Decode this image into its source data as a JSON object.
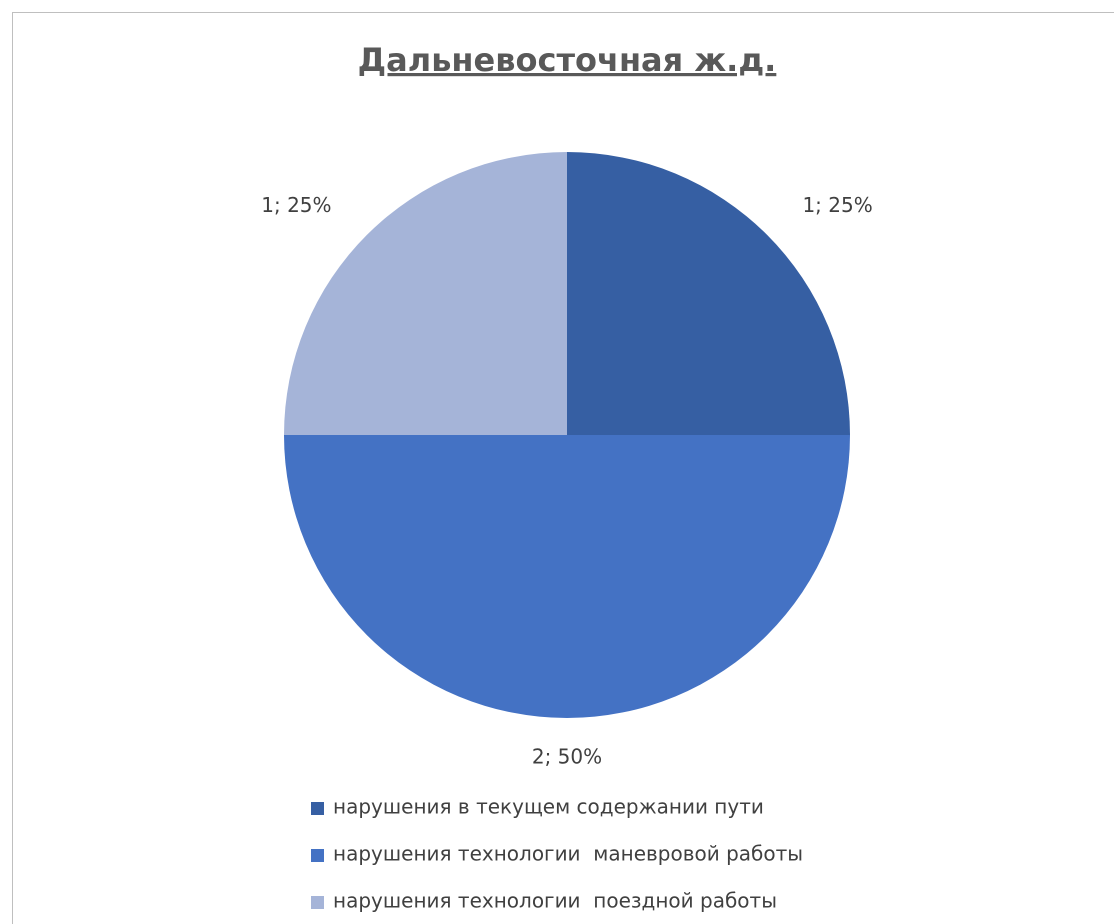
{
  "chart_data": {
    "type": "pie",
    "title": "Дальневосточная ж.д.",
    "categories": [
      "нарушения в текущем содержании пути",
      "нарушения технологии  маневровой работы",
      "нарушения технологии  поездной работы"
    ],
    "values": [
      1,
      2,
      1
    ],
    "value_labels": [
      "1; 25%",
      "2; 50%",
      "1; 25%"
    ],
    "colors": [
      "#365fa3",
      "#4472c4",
      "#a5b4d8"
    ],
    "legend": "bottom"
  }
}
